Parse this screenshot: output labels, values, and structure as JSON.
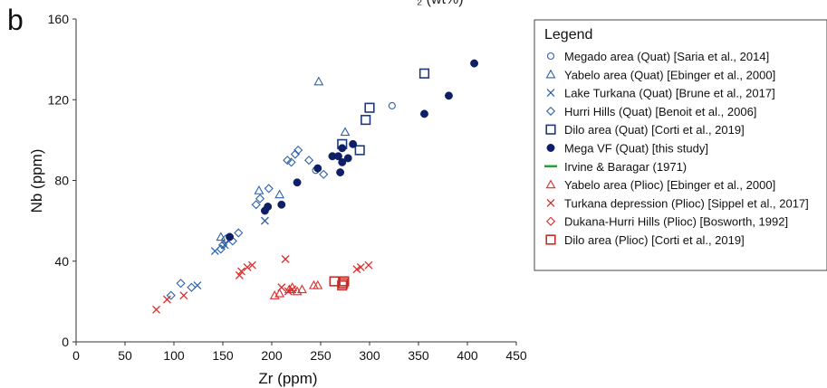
{
  "panel_label": "b",
  "top_cut_text": "₂ (wt%)",
  "chart_data": {
    "type": "scatter",
    "xlabel": "Zr (ppm)",
    "ylabel": "Nb (ppm)",
    "xlim": [
      0,
      450
    ],
    "ylim": [
      0,
      160
    ],
    "x_ticks": [
      0,
      50,
      100,
      150,
      200,
      250,
      300,
      350,
      400,
      450
    ],
    "y_ticks": [
      0,
      40,
      80,
      120,
      160
    ],
    "grid": false,
    "legend_title": "Legend",
    "legend_position": "right",
    "series": [
      {
        "name": "Megado area (Quat) [Saria et al., 2014]",
        "marker": "circle-open",
        "color": "#2f62a6",
        "points": [
          [
            245,
            85
          ],
          [
            323,
            117
          ]
        ]
      },
      {
        "name": "Yabelo area (Quat) [Ebinger et al., 2000]",
        "marker": "triangle-open",
        "color": "#2f62a6",
        "points": [
          [
            248,
            129
          ],
          [
            275,
            104
          ],
          [
            187,
            75
          ],
          [
            208,
            73
          ],
          [
            148,
            52
          ]
        ]
      },
      {
        "name": "Lake Turkana (Quat) [Brune et al., 2017]",
        "marker": "x",
        "color": "#2f62a6",
        "points": [
          [
            124,
            28
          ],
          [
            193,
            60
          ],
          [
            142,
            45
          ],
          [
            152,
            48
          ]
        ]
      },
      {
        "name": "Hurri Hills (Quat) [Benoit et al., 2006]",
        "marker": "diamond-open",
        "color": "#2f62a6",
        "points": [
          [
            97,
            23
          ],
          [
            107,
            29
          ],
          [
            118,
            27
          ],
          [
            148,
            46
          ],
          [
            150,
            48
          ],
          [
            153,
            51
          ],
          [
            160,
            50
          ],
          [
            166,
            54
          ],
          [
            184,
            68
          ],
          [
            188,
            71
          ],
          [
            197,
            76
          ],
          [
            216,
            90
          ],
          [
            220,
            89
          ],
          [
            224,
            93
          ],
          [
            227,
            95
          ],
          [
            238,
            90
          ],
          [
            253,
            83
          ]
        ]
      },
      {
        "name": "Dilo area (Quat) [Corti et al., 2019]",
        "marker": "square-open",
        "color": "#1f3a7a",
        "points": [
          [
            272,
            98
          ],
          [
            290,
            95
          ],
          [
            296,
            110
          ],
          [
            300,
            116
          ],
          [
            356,
            133
          ]
        ]
      },
      {
        "name": "Mega VF (Quat) [this study]",
        "marker": "circle-filled",
        "color": "#0f1f66",
        "points": [
          [
            157,
            52
          ],
          [
            193,
            65
          ],
          [
            196,
            67
          ],
          [
            210,
            68
          ],
          [
            226,
            79
          ],
          [
            247,
            86
          ],
          [
            262,
            92
          ],
          [
            268,
            92
          ],
          [
            270,
            84
          ],
          [
            272,
            89
          ],
          [
            272,
            96
          ],
          [
            278,
            91
          ],
          [
            283,
            98
          ],
          [
            356,
            113
          ],
          [
            381,
            122
          ],
          [
            407,
            138
          ]
        ]
      },
      {
        "name": "Irvine & Baragar (1971)",
        "marker": "line",
        "color": "#2e9b3a",
        "points": []
      },
      {
        "name": "Yabelo area (Plioc) [Ebinger et al., 2000]",
        "marker": "triangle-open",
        "color": "#e02a2a",
        "points": [
          [
            203,
            23
          ],
          [
            208,
            24
          ],
          [
            218,
            26
          ],
          [
            221,
            27
          ],
          [
            226,
            25
          ],
          [
            231,
            26
          ],
          [
            243,
            28
          ],
          [
            247,
            28
          ]
        ]
      },
      {
        "name": "Turkana depression (Plioc) [Sippel et al., 2017]",
        "marker": "x",
        "color": "#e02a2a",
        "points": [
          [
            82,
            16
          ],
          [
            93,
            21
          ],
          [
            110,
            23
          ],
          [
            167,
            33
          ],
          [
            169,
            35
          ],
          [
            175,
            37
          ],
          [
            180,
            38
          ],
          [
            210,
            27
          ],
          [
            214,
            41
          ],
          [
            217,
            25
          ],
          [
            221,
            26
          ],
          [
            287,
            36
          ],
          [
            291,
            37
          ],
          [
            299,
            38
          ]
        ]
      },
      {
        "name": "Dukana-Hurri Hills (Plioc) [Bosworth, 1992]",
        "marker": "diamond-open",
        "color": "#e02a2a",
        "points": []
      },
      {
        "name": "Dilo area (Plioc) [Corti et al., 2019]",
        "marker": "square-open",
        "color": "#c0302a",
        "points": [
          [
            264,
            30
          ],
          [
            273,
            29
          ],
          [
            272,
            28
          ],
          [
            274,
            30
          ]
        ]
      }
    ]
  }
}
